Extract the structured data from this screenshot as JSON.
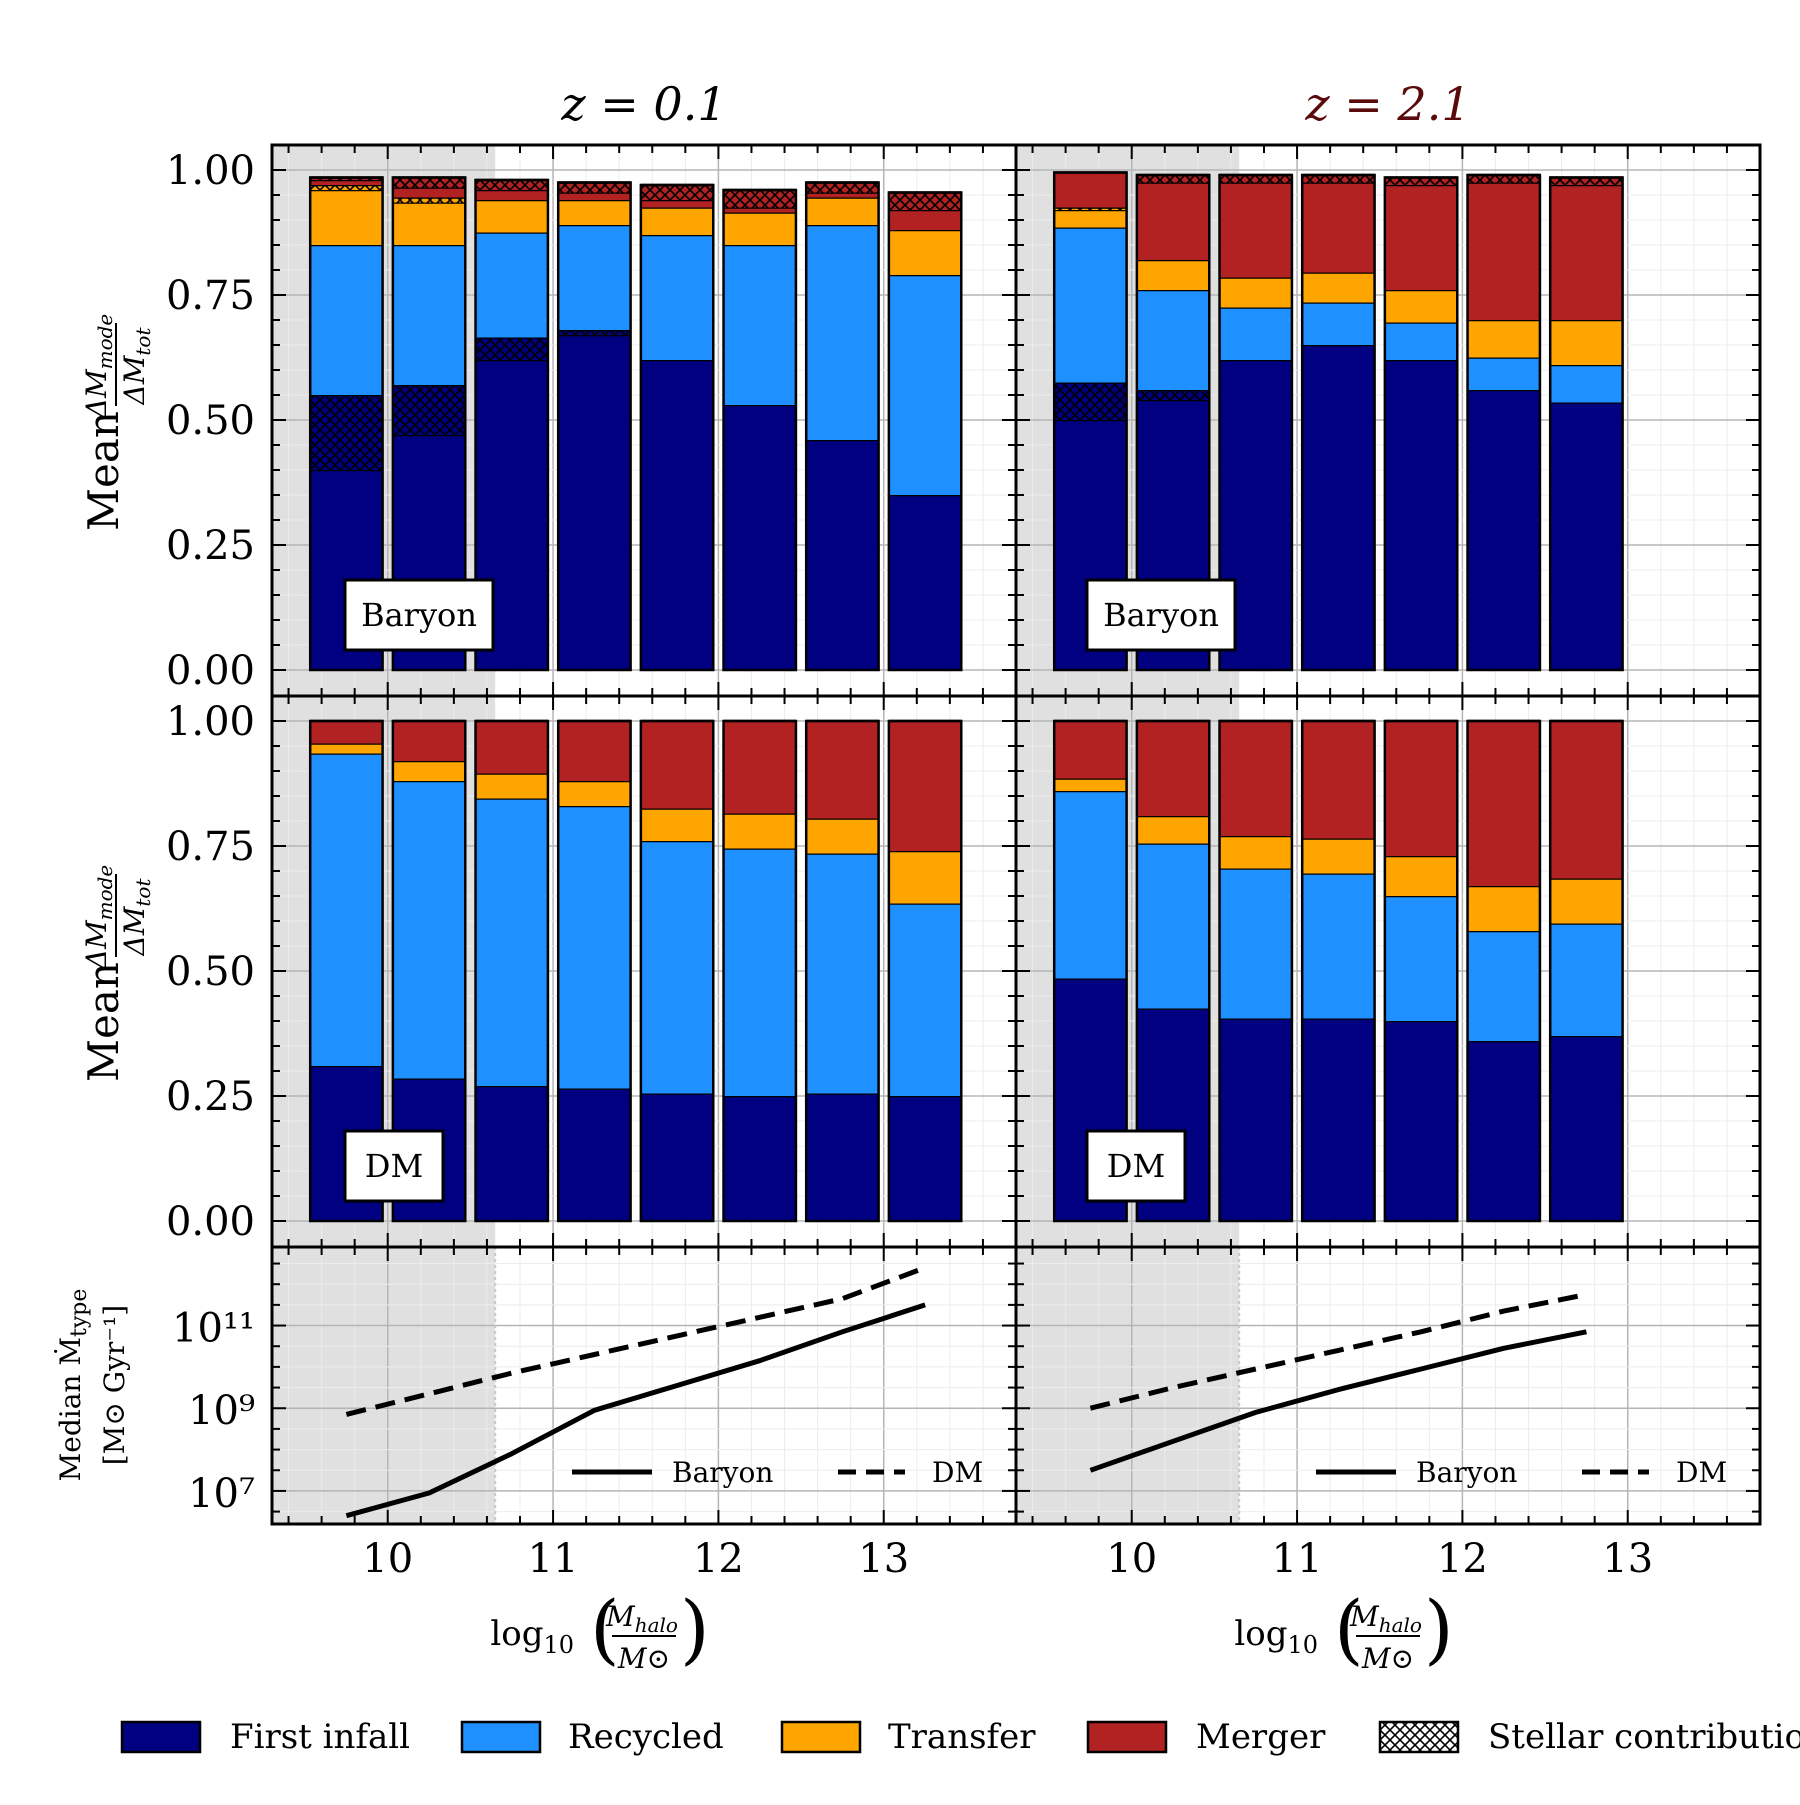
{
  "colors": {
    "first_infall": "#000080",
    "recycled": "#1e90ff",
    "transfer": "#ffa500",
    "merger": "#b22222",
    "mass_shade": "#e0e0e0",
    "title_z2": "#5a0a0a"
  },
  "chart_data": [
    {
      "type": "bar",
      "stacked": true,
      "panel": "top-left",
      "column_title": "z = 0.1",
      "label": "Baryon",
      "ylabel": "Mean ΔM_mode / ΔM_tot",
      "ylim": [
        0,
        1.05
      ],
      "yticks": [
        "0.00",
        "0.25",
        "0.50",
        "0.75",
        "1.00"
      ],
      "x_centers": [
        9.75,
        10.25,
        10.75,
        11.25,
        11.75,
        12.25,
        12.75,
        13.25
      ],
      "series": [
        {
          "name": "First infall",
          "color_key": "first_infall",
          "values": [
            0.4,
            0.47,
            0.62,
            0.67,
            0.62,
            0.53,
            0.46,
            0.35
          ]
        },
        {
          "name": "First infall stellar",
          "color_key": "first_infall",
          "hatch": true,
          "values": [
            0.15,
            0.1,
            0.045,
            0.01,
            0.0,
            0.0,
            0.0,
            0.0
          ]
        },
        {
          "name": "Recycled",
          "color_key": "recycled",
          "values": [
            0.3,
            0.28,
            0.21,
            0.21,
            0.25,
            0.32,
            0.43,
            0.44
          ]
        },
        {
          "name": "Recycled stellar",
          "color_key": "recycled",
          "hatch": true,
          "values": [
            0.0,
            0.0,
            0.0,
            0.0,
            0.0,
            0.0,
            0.0,
            0.0
          ]
        },
        {
          "name": "Transfer",
          "color_key": "transfer",
          "values": [
            0.11,
            0.085,
            0.065,
            0.05,
            0.055,
            0.065,
            0.055,
            0.09
          ]
        },
        {
          "name": "Transfer stellar",
          "color_key": "transfer",
          "hatch": true,
          "values": [
            0.01,
            0.01,
            0.0,
            0.0,
            0.0,
            0.0,
            0.0,
            0.0
          ]
        },
        {
          "name": "Merger",
          "color_key": "merger",
          "values": [
            0.01,
            0.02,
            0.02,
            0.015,
            0.015,
            0.01,
            0.01,
            0.04
          ]
        },
        {
          "name": "Merger stellar",
          "color_key": "merger",
          "hatch": true,
          "values": [
            0.005,
            0.02,
            0.02,
            0.02,
            0.03,
            0.035,
            0.02,
            0.035
          ]
        }
      ]
    },
    {
      "type": "bar",
      "stacked": true,
      "panel": "top-right",
      "column_title": "z = 2.1",
      "label": "Baryon",
      "ylim": [
        0,
        1.05
      ],
      "yticks": [
        "0.00",
        "0.25",
        "0.50",
        "0.75",
        "1.00"
      ],
      "x_centers": [
        9.75,
        10.25,
        10.75,
        11.25,
        11.75,
        12.25,
        12.75
      ],
      "series": [
        {
          "name": "First infall",
          "color_key": "first_infall",
          "values": [
            0.5,
            0.54,
            0.62,
            0.65,
            0.62,
            0.56,
            0.535
          ]
        },
        {
          "name": "First infall stellar",
          "color_key": "first_infall",
          "hatch": true,
          "values": [
            0.075,
            0.02,
            0.0,
            0.0,
            0.0,
            0.0,
            0.0
          ]
        },
        {
          "name": "Recycled",
          "color_key": "recycled",
          "values": [
            0.31,
            0.2,
            0.105,
            0.085,
            0.075,
            0.065,
            0.075
          ]
        },
        {
          "name": "Recycled stellar",
          "color_key": "recycled",
          "hatch": true,
          "values": [
            0.0,
            0.0,
            0.0,
            0.0,
            0.0,
            0.0,
            0.0
          ]
        },
        {
          "name": "Transfer",
          "color_key": "transfer",
          "values": [
            0.035,
            0.06,
            0.06,
            0.06,
            0.065,
            0.075,
            0.09
          ]
        },
        {
          "name": "Transfer stellar",
          "color_key": "transfer",
          "hatch": true,
          "values": [
            0.005,
            0.0,
            0.0,
            0.0,
            0.0,
            0.0,
            0.0
          ]
        },
        {
          "name": "Merger",
          "color_key": "merger",
          "values": [
            0.07,
            0.155,
            0.19,
            0.18,
            0.21,
            0.275,
            0.27
          ]
        },
        {
          "name": "Merger stellar",
          "color_key": "merger",
          "hatch": true,
          "values": [
            0.0,
            0.015,
            0.015,
            0.015,
            0.015,
            0.015,
            0.015
          ]
        }
      ]
    },
    {
      "type": "bar",
      "stacked": true,
      "panel": "middle-left",
      "label": "DM",
      "ylabel": "Mean ΔM_mode / ΔM_tot",
      "ylim": [
        0,
        1.05
      ],
      "yticks": [
        "0.00",
        "0.25",
        "0.50",
        "0.75",
        "1.00"
      ],
      "x_centers": [
        9.75,
        10.25,
        10.75,
        11.25,
        11.75,
        12.25,
        12.75,
        13.25
      ],
      "series": [
        {
          "name": "First infall",
          "color_key": "first_infall",
          "values": [
            0.31,
            0.285,
            0.27,
            0.265,
            0.255,
            0.25,
            0.255,
            0.25
          ]
        },
        {
          "name": "Recycled",
          "color_key": "recycled",
          "values": [
            0.625,
            0.595,
            0.575,
            0.565,
            0.505,
            0.495,
            0.48,
            0.385
          ]
        },
        {
          "name": "Transfer",
          "color_key": "transfer",
          "values": [
            0.02,
            0.04,
            0.05,
            0.05,
            0.065,
            0.07,
            0.07,
            0.105
          ]
        },
        {
          "name": "Merger",
          "color_key": "merger",
          "values": [
            0.045,
            0.08,
            0.105,
            0.12,
            0.175,
            0.185,
            0.195,
            0.26
          ]
        }
      ]
    },
    {
      "type": "bar",
      "stacked": true,
      "panel": "middle-right",
      "label": "DM",
      "ylim": [
        0,
        1.05
      ],
      "yticks": [
        "0.00",
        "0.25",
        "0.50",
        "0.75",
        "1.00"
      ],
      "x_centers": [
        9.75,
        10.25,
        10.75,
        11.25,
        11.75,
        12.25,
        12.75
      ],
      "series": [
        {
          "name": "First infall",
          "color_key": "first_infall",
          "values": [
            0.485,
            0.425,
            0.405,
            0.405,
            0.4,
            0.36,
            0.37
          ]
        },
        {
          "name": "Recycled",
          "color_key": "recycled",
          "values": [
            0.375,
            0.33,
            0.3,
            0.29,
            0.25,
            0.22,
            0.225
          ]
        },
        {
          "name": "Transfer",
          "color_key": "transfer",
          "values": [
            0.025,
            0.055,
            0.065,
            0.07,
            0.08,
            0.09,
            0.09
          ]
        },
        {
          "name": "Merger",
          "color_key": "merger",
          "values": [
            0.115,
            0.19,
            0.23,
            0.235,
            0.27,
            0.33,
            0.315
          ]
        }
      ]
    },
    {
      "type": "line",
      "panel": "bottom-left",
      "ylabel_line1": "Median Ṁ_type",
      "ylabel_line2": "[M⊙ Gyr⁻¹]",
      "xlabel": "log10 (M_halo / M⊙)",
      "yscale": "log",
      "ylim_log10": [
        6.2,
        12.9
      ],
      "xlim": [
        9.3,
        13.8
      ],
      "xticks": [
        "10",
        "11",
        "12",
        "13"
      ],
      "yticks": [
        "10⁷",
        "10⁹",
        "10¹¹"
      ],
      "series": [
        {
          "name": "Baryon",
          "style": "solid",
          "x": [
            9.75,
            10.25,
            10.75,
            11.25,
            11.75,
            12.25,
            12.75,
            13.25
          ],
          "log10_y": [
            6.4,
            6.95,
            7.9,
            8.95,
            9.55,
            10.15,
            10.85,
            11.5
          ]
        },
        {
          "name": "DM",
          "style": "dashed",
          "x": [
            9.75,
            10.25,
            10.75,
            11.25,
            11.75,
            12.25,
            12.75,
            13.25
          ],
          "log10_y": [
            8.85,
            9.35,
            9.85,
            10.3,
            10.75,
            11.2,
            11.65,
            12.4
          ]
        }
      ]
    },
    {
      "type": "line",
      "panel": "bottom-right",
      "xlabel": "log10 (M_halo / M⊙)",
      "yscale": "log",
      "ylim_log10": [
        6.2,
        12.9
      ],
      "xlim": [
        9.3,
        13.8
      ],
      "xticks": [
        "10",
        "11",
        "12",
        "13"
      ],
      "series": [
        {
          "name": "Baryon",
          "style": "solid",
          "x": [
            9.75,
            10.25,
            10.75,
            11.25,
            11.75,
            12.25,
            12.75
          ],
          "log10_y": [
            7.5,
            8.2,
            8.9,
            9.45,
            9.95,
            10.45,
            10.85
          ]
        },
        {
          "name": "DM",
          "style": "dashed",
          "x": [
            9.75,
            10.25,
            10.75,
            11.25,
            11.75,
            12.25,
            12.75
          ],
          "log10_y": [
            9.0,
            9.5,
            9.95,
            10.4,
            10.85,
            11.35,
            11.75
          ]
        }
      ]
    }
  ],
  "text": {
    "title_left": "z = 0.1",
    "title_right": "z = 2.1",
    "ylabel_mean": "Mean",
    "ylabel_frac_num": "ΔM",
    "ylabel_frac_num_sub": "mode",
    "ylabel_frac_den": "ΔM",
    "ylabel_frac_den_sub": "tot",
    "ylabel_median": "Median Ṁ",
    "ylabel_median_sub": "type",
    "ylabel_units": "[M⊙ Gyr⁻¹]",
    "xlabel_log": "log",
    "xlabel_log_sub": "10",
    "xlabel_num": "M",
    "xlabel_num_sub": "halo",
    "xlabel_den": "M⊙",
    "badge_baryon": "Baryon",
    "badge_dm": "DM",
    "inlegend_baryon": "Baryon",
    "inlegend_dm": "DM"
  },
  "legend": [
    {
      "label": "First infall",
      "color_key": "first_infall",
      "hatch": false
    },
    {
      "label": "Recycled",
      "color_key": "recycled",
      "hatch": false
    },
    {
      "label": "Transfer",
      "color_key": "transfer",
      "hatch": false
    },
    {
      "label": "Merger",
      "color_key": "merger",
      "hatch": false
    },
    {
      "label": "Stellar contribution",
      "color_key": "none",
      "hatch": true
    }
  ]
}
